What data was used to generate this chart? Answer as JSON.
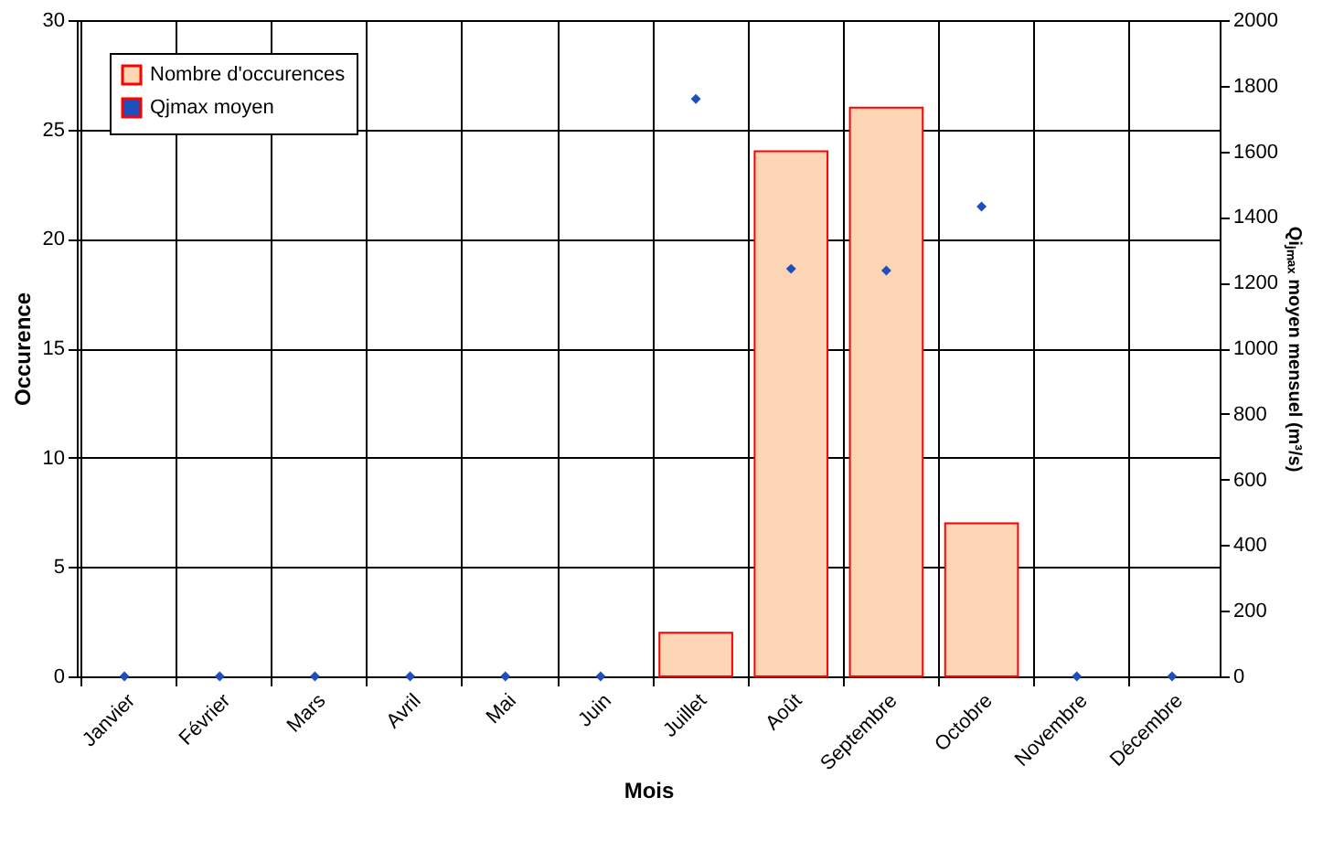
{
  "chart_data": {
    "type": "bar",
    "xlabel": "Mois",
    "ylabel": "Occurence",
    "y2label": "Qiⱼₘₐₓ moyen mensuel (m³/s)",
    "categories": [
      "Janvier",
      "Février",
      "Mars",
      "Avril",
      "Mai",
      "Juin",
      "Juillet",
      "Août",
      "Septembre",
      "Octobre",
      "Novembre",
      "Décembre"
    ],
    "series": [
      {
        "name": "Nombre d'occurences",
        "color": "#fcd5b4",
        "values": [
          0,
          0,
          0,
          0,
          0,
          0,
          2,
          24,
          26,
          7,
          0,
          0
        ]
      },
      {
        "name": "Qjmax moyen",
        "type": "scatter",
        "axis": "y2",
        "marker": "diamond",
        "color": "#1f4fbf",
        "values": [
          0,
          0,
          0,
          0,
          0,
          0,
          1760,
          1242,
          1237,
          1432,
          0,
          0
        ]
      }
    ],
    "ylim": [
      0,
      30
    ],
    "yticks": [
      0,
      5,
      10,
      15,
      20,
      25,
      30
    ],
    "y2lim": [
      0,
      2000
    ],
    "y2ticks": [
      0,
      200,
      400,
      600,
      800,
      1000,
      1200,
      1400,
      1600,
      1800,
      2000
    ],
    "grid": true,
    "legend": "top left"
  }
}
